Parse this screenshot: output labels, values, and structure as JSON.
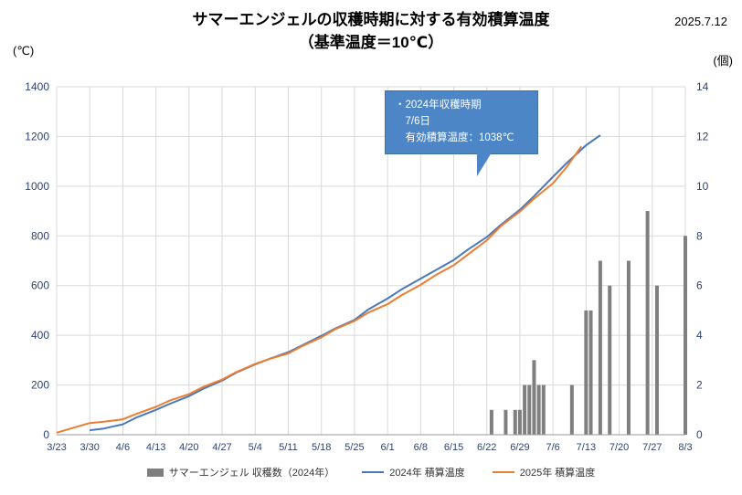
{
  "window": {
    "date_label": "2025.7.12"
  },
  "title": {
    "line1": "サマーエンジェルの収穫時期に対する有効積算温度",
    "line2": "（基準温度＝10℃）"
  },
  "axes": {
    "left_unit": "(℃)",
    "right_unit": "(個)"
  },
  "annotation": {
    "line1": "・2024年収穫時期",
    "line2": "　7/6日",
    "line3": "　有効積算温度：1038℃"
  },
  "legend": {
    "bars": "サマーエンジェル  収穫数（2024年）",
    "line2024": "2024年  積算温度",
    "line2025": "2025年  積算温度"
  },
  "colors": {
    "line2024": "#4879bd",
    "line2025": "#ed7d31",
    "bars": "#7f7f7f",
    "grid": "#d9d9d9",
    "axis": "#9a9a9a",
    "callout": "#4d86c6"
  },
  "chart_data": {
    "type": "line+bar",
    "title": "サマーエンジェルの収穫時期に対する有効積算温度（基準温度＝10℃）",
    "x_ticks": [
      "3/23",
      "3/30",
      "4/6",
      "4/13",
      "4/20",
      "4/27",
      "5/4",
      "5/11",
      "5/18",
      "5/25",
      "6/1",
      "6/8",
      "6/15",
      "6/22",
      "6/29",
      "7/6",
      "7/13",
      "7/20",
      "7/27",
      "8/3"
    ],
    "y_left": {
      "label": "(℃)",
      "min": 0,
      "max": 1400,
      "step": 200,
      "ticks": [
        0,
        200,
        400,
        600,
        800,
        1000,
        1200,
        1400
      ]
    },
    "y_right": {
      "label": "(個)",
      "min": 0,
      "max": 14,
      "step": 2,
      "ticks": [
        0,
        2,
        4,
        6,
        8,
        10,
        12,
        14
      ]
    },
    "grid": true,
    "legend_position": "bottom",
    "series": [
      {
        "name": "2024年 積算温度",
        "type": "line",
        "axis": "left",
        "color": "#4879bd",
        "points": [
          [
            "3/30",
            18
          ],
          [
            "4/2",
            25
          ],
          [
            "4/6",
            42
          ],
          [
            "4/9",
            70
          ],
          [
            "4/13",
            100
          ],
          [
            "4/16",
            125
          ],
          [
            "4/20",
            155
          ],
          [
            "4/23",
            185
          ],
          [
            "4/27",
            218
          ],
          [
            "4/30",
            250
          ],
          [
            "5/4",
            283
          ],
          [
            "5/7",
            305
          ],
          [
            "5/11",
            332
          ],
          [
            "5/14",
            360
          ],
          [
            "5/18",
            398
          ],
          [
            "5/21",
            428
          ],
          [
            "5/25",
            462
          ],
          [
            "5/28",
            505
          ],
          [
            "6/1",
            548
          ],
          [
            "6/4",
            585
          ],
          [
            "6/8",
            628
          ],
          [
            "6/11",
            660
          ],
          [
            "6/15",
            703
          ],
          [
            "6/18",
            745
          ],
          [
            "6/22",
            795
          ],
          [
            "6/25",
            845
          ],
          [
            "6/29",
            905
          ],
          [
            "7/2",
            960
          ],
          [
            "7/6",
            1038
          ],
          [
            "7/9",
            1095
          ],
          [
            "7/13",
            1165
          ],
          [
            "7/16",
            1205
          ]
        ]
      },
      {
        "name": "2025年 積算温度",
        "type": "line",
        "axis": "left",
        "color": "#ed7d31",
        "points": [
          [
            "3/23",
            8
          ],
          [
            "3/26",
            25
          ],
          [
            "3/30",
            47
          ],
          [
            "4/2",
            52
          ],
          [
            "4/6",
            62
          ],
          [
            "4/9",
            85
          ],
          [
            "4/13",
            112
          ],
          [
            "4/16",
            138
          ],
          [
            "4/20",
            163
          ],
          [
            "4/23",
            192
          ],
          [
            "4/27",
            222
          ],
          [
            "4/30",
            252
          ],
          [
            "5/4",
            285
          ],
          [
            "5/7",
            305
          ],
          [
            "5/11",
            327
          ],
          [
            "5/14",
            357
          ],
          [
            "5/18",
            392
          ],
          [
            "5/21",
            425
          ],
          [
            "5/25",
            458
          ],
          [
            "5/28",
            492
          ],
          [
            "6/1",
            525
          ],
          [
            "6/4",
            562
          ],
          [
            "6/8",
            603
          ],
          [
            "6/11",
            640
          ],
          [
            "6/15",
            682
          ],
          [
            "6/18",
            725
          ],
          [
            "6/22",
            782
          ],
          [
            "6/25",
            840
          ],
          [
            "6/29",
            898
          ],
          [
            "7/2",
            950
          ],
          [
            "7/6",
            1012
          ],
          [
            "7/9",
            1080
          ],
          [
            "7/12",
            1160
          ]
        ]
      },
      {
        "name": "サマーエンジェル 収穫数（2024年）",
        "type": "bar",
        "axis": "right",
        "color": "#7f7f7f",
        "points": [
          [
            "6/23",
            1
          ],
          [
            "6/26",
            1
          ],
          [
            "6/28",
            1
          ],
          [
            "6/29",
            1
          ],
          [
            "6/30",
            2
          ],
          [
            "7/1",
            2
          ],
          [
            "7/2",
            3
          ],
          [
            "7/3",
            2
          ],
          [
            "7/4",
            2
          ],
          [
            "7/10",
            2
          ],
          [
            "7/13",
            5
          ],
          [
            "7/14",
            5
          ],
          [
            "7/16",
            7
          ],
          [
            "7/18",
            6
          ],
          [
            "7/22",
            7
          ],
          [
            "7/26",
            9
          ],
          [
            "7/28",
            6
          ],
          [
            "8/3",
            8
          ]
        ]
      }
    ],
    "annotation": "・2024年収穫時期 7/6日 有効積算温度：1038℃"
  }
}
